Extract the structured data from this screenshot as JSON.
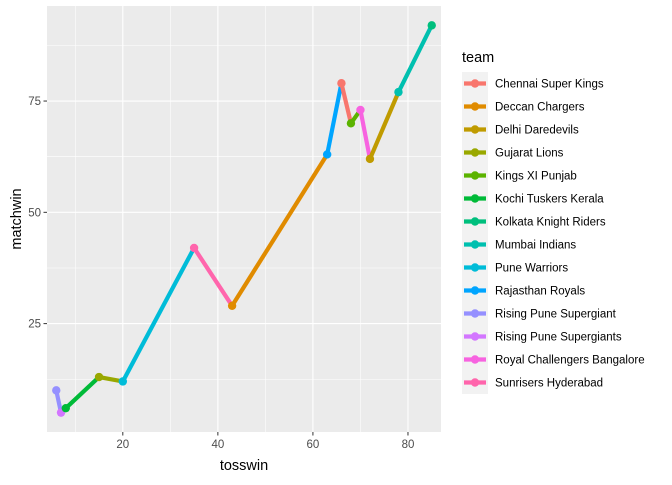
{
  "chart_data": {
    "type": "line",
    "xlabel": "tosswin",
    "ylabel": "matchwin",
    "xlim": [
      4.05,
      86.95
    ],
    "ylim": [
      0.65,
      96.35
    ],
    "x_ticks": [
      20,
      40,
      60,
      80
    ],
    "y_ticks": [
      25,
      50,
      75
    ],
    "grid": true,
    "legend": {
      "title": "team",
      "placement": "right"
    },
    "ordered_points": [
      {
        "team": "Rising Pune Supergiant",
        "x": 6,
        "y": 10
      },
      {
        "team": "Rising Pune Supergiants",
        "x": 7,
        "y": 5
      },
      {
        "team": "Kochi Tuskers Kerala",
        "x": 8,
        "y": 6
      },
      {
        "team": "Gujarat Lions",
        "x": 15,
        "y": 13
      },
      {
        "team": "Pune Warriors",
        "x": 20,
        "y": 12
      },
      {
        "team": "Sunrisers Hyderabad",
        "x": 35,
        "y": 42
      },
      {
        "team": "Deccan Chargers",
        "x": 43,
        "y": 29
      },
      {
        "team": "Rajasthan Royals",
        "x": 63,
        "y": 63
      },
      {
        "team": "Chennai Super Kings",
        "x": 66,
        "y": 79
      },
      {
        "team": "Kings XI Punjab",
        "x": 68,
        "y": 70
      },
      {
        "team": "Royal Challengers Bangalore",
        "x": 70,
        "y": 73
      },
      {
        "team": "Delhi Daredevils",
        "x": 72,
        "y": 62
      },
      {
        "team": "Mumbai Indians",
        "x": 78,
        "y": 77
      },
      {
        "team": "Kolkata Knight Riders",
        "x": 85,
        "y": 92
      }
    ],
    "series": [
      {
        "name": "Chennai Super Kings",
        "color": "#F8766D"
      },
      {
        "name": "Deccan Chargers",
        "color": "#E08B00"
      },
      {
        "name": "Delhi Daredevils",
        "color": "#C09B00"
      },
      {
        "name": "Gujarat Lions",
        "color": "#99A800"
      },
      {
        "name": "Kings XI Punjab",
        "color": "#5BB300"
      },
      {
        "name": "Kochi Tuskers Kerala",
        "color": "#00BA38"
      },
      {
        "name": "Kolkata Knight Riders",
        "color": "#00BF7D"
      },
      {
        "name": "Mumbai Indians",
        "color": "#00C0AF"
      },
      {
        "name": "Pune Warriors",
        "color": "#00BCD8"
      },
      {
        "name": "Rajasthan Royals",
        "color": "#00A5FF"
      },
      {
        "name": "Rising Pune Supergiant",
        "color": "#9590FF"
      },
      {
        "name": "Rising Pune Supergiants",
        "color": "#D376FF"
      },
      {
        "name": "Royal Challengers Bangalore",
        "color": "#F763E0"
      },
      {
        "name": "Sunrisers Hyderabad",
        "color": "#FF65AC"
      }
    ]
  },
  "colors": {
    "panel_background": "#EBEBEB",
    "grid_major": "#FFFFFF",
    "legend_key_background": "#F2F2F2"
  }
}
